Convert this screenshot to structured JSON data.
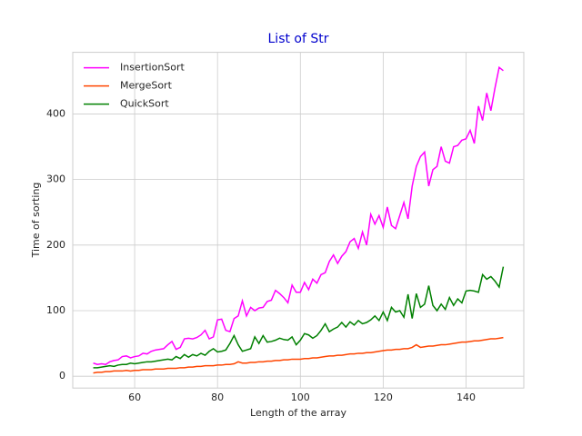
{
  "chart_data": {
    "type": "line",
    "title": "List of Str",
    "xlabel": "Length of the array",
    "ylabel": "Time of sorting",
    "x": [
      50,
      51,
      52,
      53,
      54,
      55,
      56,
      57,
      58,
      59,
      60,
      61,
      62,
      63,
      64,
      65,
      66,
      67,
      68,
      69,
      70,
      71,
      72,
      73,
      74,
      75,
      76,
      77,
      78,
      79,
      80,
      81,
      82,
      83,
      84,
      85,
      86,
      87,
      88,
      89,
      90,
      91,
      92,
      93,
      94,
      95,
      96,
      97,
      98,
      99,
      100,
      101,
      102,
      103,
      104,
      105,
      106,
      107,
      108,
      109,
      110,
      111,
      112,
      113,
      114,
      115,
      116,
      117,
      118,
      119,
      120,
      121,
      122,
      123,
      124,
      125,
      126,
      127,
      128,
      129,
      130,
      131,
      132,
      133,
      134,
      135,
      136,
      137,
      138,
      139,
      140,
      141,
      142,
      143,
      144,
      145,
      146,
      147,
      148,
      149
    ],
    "series": [
      {
        "name": "InsertionSort",
        "color": "#ff00ff",
        "values": [
          20,
          18,
          19,
          18,
          22,
          24,
          25,
          30,
          31,
          28,
          30,
          31,
          35,
          34,
          38,
          40,
          41,
          42,
          48,
          53,
          41,
          44,
          57,
          58,
          57,
          59,
          63,
          70,
          57,
          60,
          86,
          87,
          70,
          68,
          88,
          92,
          115,
          92,
          105,
          100,
          104,
          105,
          114,
          116,
          131,
          126,
          120,
          112,
          139,
          128,
          128,
          143,
          132,
          148,
          142,
          155,
          158,
          175,
          185,
          172,
          183,
          190,
          205,
          210,
          195,
          220,
          200,
          247,
          232,
          245,
          227,
          258,
          230,
          225,
          245,
          265,
          240,
          290,
          320,
          335,
          342,
          290,
          315,
          320,
          350,
          328,
          325,
          350,
          352,
          360,
          362,
          375,
          355,
          412,
          390,
          432,
          405,
          440,
          471,
          466
        ]
      },
      {
        "name": "MergeSort",
        "color": "#ff4500",
        "values": [
          5,
          6,
          6,
          7,
          7,
          8,
          8,
          8,
          9,
          8,
          9,
          9,
          10,
          10,
          10,
          11,
          11,
          11,
          12,
          12,
          12,
          13,
          13,
          14,
          14,
          15,
          15,
          16,
          16,
          16,
          17,
          17,
          18,
          18,
          19,
          22,
          20,
          20,
          21,
          21,
          22,
          22,
          23,
          23,
          24,
          24,
          25,
          25,
          26,
          26,
          26,
          27,
          27,
          28,
          28,
          29,
          30,
          31,
          31,
          32,
          32,
          33,
          34,
          34,
          35,
          35,
          36,
          36,
          37,
          38,
          39,
          40,
          40,
          41,
          41,
          42,
          42,
          44,
          48,
          44,
          45,
          46,
          46,
          47,
          48,
          48,
          49,
          50,
          51,
          52,
          52,
          53,
          54,
          54,
          55,
          56,
          57,
          57,
          58,
          59
        ]
      },
      {
        "name": "QuickSort",
        "color": "#008000",
        "values": [
          13,
          13,
          14,
          15,
          16,
          15,
          17,
          18,
          18,
          20,
          19,
          20,
          21,
          22,
          22,
          23,
          24,
          25,
          26,
          25,
          30,
          27,
          33,
          29,
          33,
          31,
          35,
          32,
          38,
          42,
          37,
          38,
          40,
          50,
          62,
          48,
          38,
          40,
          42,
          60,
          50,
          62,
          52,
          53,
          55,
          58,
          56,
          55,
          60,
          48,
          55,
          65,
          63,
          58,
          62,
          70,
          80,
          68,
          72,
          75,
          82,
          75,
          83,
          78,
          85,
          80,
          82,
          86,
          92,
          85,
          98,
          85,
          105,
          98,
          100,
          90,
          125,
          88,
          126,
          105,
          110,
          138,
          108,
          100,
          110,
          102,
          120,
          108,
          118,
          112,
          130,
          131,
          130,
          128,
          155,
          148,
          152,
          145,
          136,
          167
        ]
      }
    ],
    "xlim": [
      45.05,
      153.95
    ],
    "ylim": [
      -18,
      494
    ],
    "xticks": [
      60,
      80,
      100,
      120,
      140
    ],
    "yticks": [
      0,
      100,
      200,
      300,
      400
    ],
    "grid": true,
    "legend": "upper left"
  }
}
